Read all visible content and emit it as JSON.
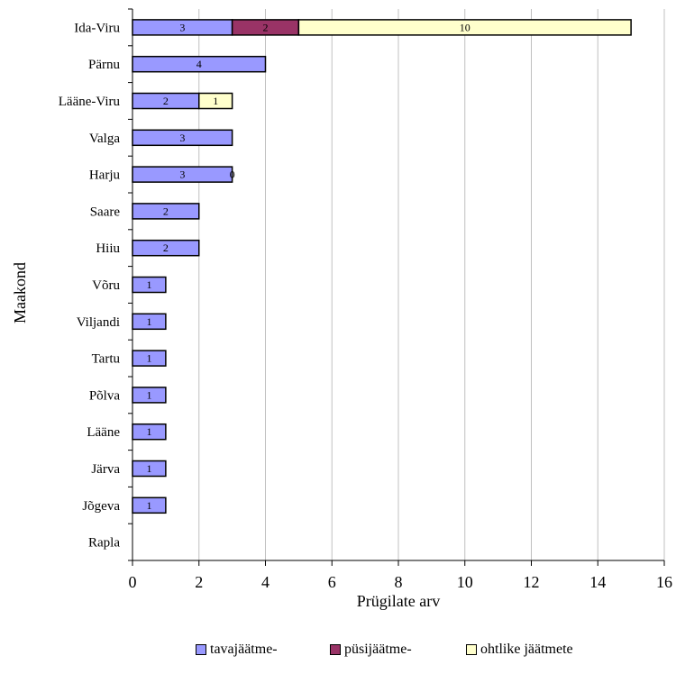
{
  "chart_data": {
    "type": "bar",
    "orientation": "horizontal",
    "stacked": true,
    "ylabel": "Maakond",
    "xlabel": "Prügilate arv",
    "xlim": [
      0,
      16
    ],
    "x_ticks": [
      "0",
      "2",
      "4",
      "6",
      "8",
      "10",
      "12",
      "14",
      "16"
    ],
    "grid": "vertical",
    "legend_position": "bottom",
    "categories": [
      "Ida-Viru",
      "Pärnu",
      "Lääne-Viru",
      "Valga",
      "Harju",
      "Saare",
      "Hiiu",
      "Võru",
      "Viljandi",
      "Tartu",
      "Põlva",
      "Lääne",
      "Järva",
      "Jõgeva",
      "Rapla"
    ],
    "series": [
      {
        "name": "tavajäätme-",
        "color": "#9999ff",
        "values": [
          3,
          4,
          2,
          3,
          3,
          2,
          2,
          1,
          1,
          1,
          1,
          1,
          1,
          1,
          0
        ]
      },
      {
        "name": "püsijäätme-",
        "color": "#993366",
        "values": [
          2,
          0,
          0,
          0,
          0,
          0,
          0,
          0,
          0,
          0,
          0,
          0,
          0,
          0,
          0
        ]
      },
      {
        "name": "ohtlike jäätmete",
        "color": "#ffffcc",
        "values": [
          10,
          0,
          1,
          0,
          0,
          0,
          0,
          0,
          0,
          0,
          0,
          0,
          0,
          0,
          0
        ]
      }
    ],
    "data_labels": [
      [
        "3",
        "2",
        "10"
      ],
      [
        "4",
        "",
        ""
      ],
      [
        "2",
        "",
        "1"
      ],
      [
        "3",
        "",
        ""
      ],
      [
        "3",
        "",
        "0"
      ],
      [
        "2",
        "",
        ""
      ],
      [
        "2",
        "",
        ""
      ],
      [
        "1",
        "",
        ""
      ],
      [
        "1",
        "",
        ""
      ],
      [
        "1",
        "",
        ""
      ],
      [
        "1",
        "",
        ""
      ],
      [
        "1",
        "",
        ""
      ],
      [
        "1",
        "",
        ""
      ],
      [
        "1",
        "",
        ""
      ],
      [
        "",
        "",
        ""
      ]
    ]
  }
}
